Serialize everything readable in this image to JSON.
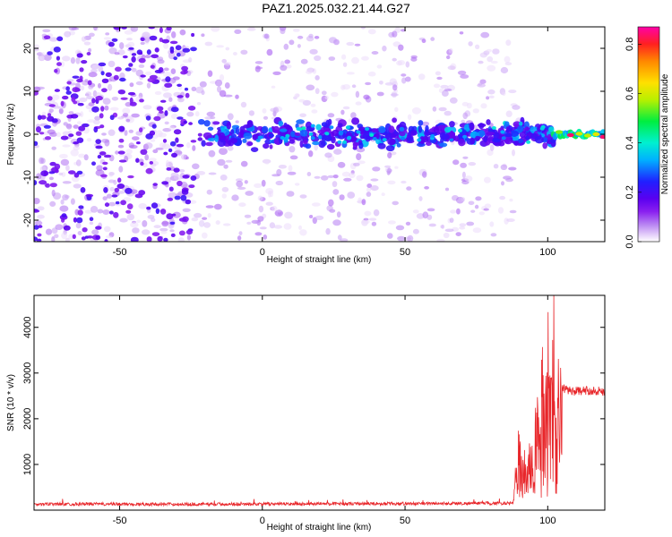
{
  "title": "PAZ1.2025.032.21.44.G27",
  "chart_data": [
    {
      "type": "heatmap",
      "xlabel": "Height of straight line (km)",
      "ylabel": "Frequency (Hz)",
      "xlim": [
        -80,
        120
      ],
      "ylim": [
        -25,
        25
      ],
      "xticks": [
        -50,
        0,
        50,
        100
      ],
      "yticks": [
        -20,
        -10,
        0,
        10,
        20
      ],
      "colorbar": {
        "label": "Normalized spectral amplitude",
        "range": [
          0,
          0.87
        ],
        "ticks": [
          0.0,
          0.2,
          0.4,
          0.6,
          0.8
        ],
        "colormap": "rainbow (white/violet/purple/blue/cyan/green/yellow/orange/red/magenta)"
      },
      "features": [
        {
          "description": "broad noise speckle",
          "x_range": [
            -80,
            90
          ],
          "f_range": [
            -25,
            25
          ],
          "amplitude_range": [
            0.0,
            0.1
          ]
        },
        {
          "description": "signal band near 0 Hz",
          "x_range": [
            -22,
            102
          ],
          "f_range": [
            -4,
            4
          ],
          "amplitude_range": [
            0.05,
            0.3
          ]
        },
        {
          "description": "strong tone near 0 Hz",
          "x_range": [
            102,
            120
          ],
          "f_range": [
            -1.5,
            1.5
          ],
          "amplitude_range": [
            0.3,
            0.87
          ]
        }
      ]
    },
    {
      "type": "line",
      "xlabel": "Height of straight line (km)",
      "ylabel": "SNR (10 * v/v)",
      "xlim": [
        -80,
        120
      ],
      "ylim": [
        0,
        4700
      ],
      "xticks": [
        -50,
        0,
        50,
        100
      ],
      "yticks": [
        1000,
        2000,
        3000,
        4000
      ],
      "series": [
        {
          "color": "#e8262a",
          "x": [
            -80,
            -60,
            -40,
            -20,
            0,
            20,
            40,
            60,
            80,
            88,
            89,
            90,
            91,
            92,
            93,
            94,
            95,
            96,
            97,
            98,
            99,
            100,
            101,
            102,
            103,
            104,
            105,
            106,
            108,
            110,
            115,
            120
          ],
          "y": [
            130,
            135,
            130,
            130,
            135,
            140,
            140,
            145,
            150,
            150,
            1000,
            1700,
            800,
            1500,
            600,
            2000,
            1200,
            2900,
            1600,
            3400,
            2200,
            4600,
            3000,
            4700,
            2200,
            3400,
            2700,
            2650,
            2620,
            2600,
            2620,
            2600
          ]
        }
      ]
    }
  ]
}
